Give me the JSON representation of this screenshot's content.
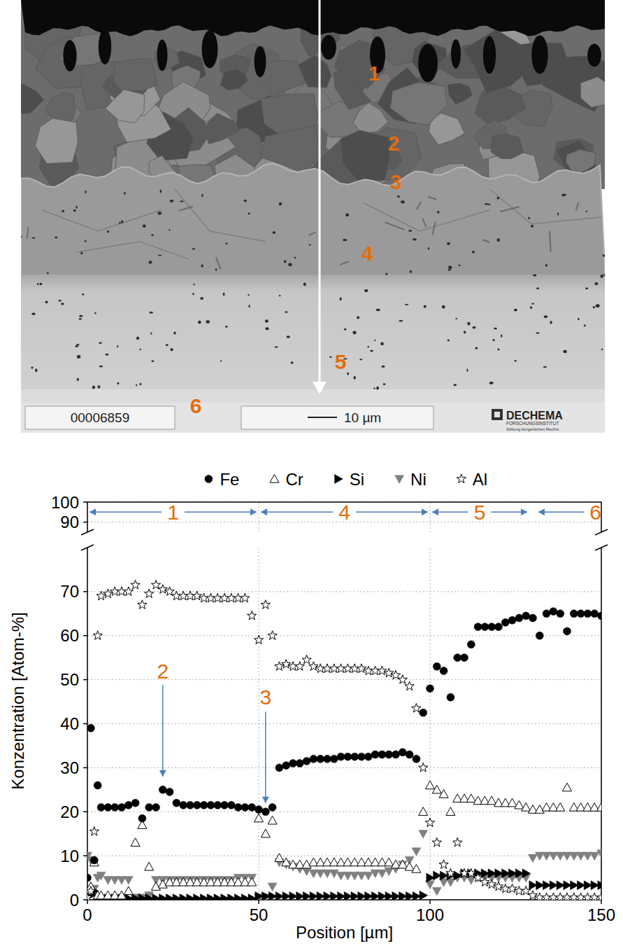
{
  "micrograph": {
    "labels": [
      "1",
      "2",
      "3",
      "4",
      "5",
      "6"
    ],
    "image_id": "00006859",
    "scale_bar": "10 µm",
    "logo": "DECHEMA",
    "logo_subtitle": "FORSCHUNGSINSTITUT",
    "logo_note": "Stiftung bürgerlichen Rechts"
  },
  "chart_data": {
    "type": "scatter",
    "x_label": "Position [µm]",
    "y_label": "Konzentration [Atom-%]",
    "x": [
      0,
      1,
      2,
      3,
      4,
      6,
      8,
      10,
      12,
      14,
      16,
      18,
      20,
      22,
      24,
      26,
      28,
      30,
      32,
      34,
      36,
      38,
      40,
      42,
      44,
      46,
      48,
      50,
      52,
      54,
      56,
      58,
      60,
      62,
      64,
      66,
      68,
      70,
      72,
      74,
      76,
      78,
      80,
      82,
      84,
      86,
      88,
      90,
      92,
      94,
      96,
      98,
      100,
      102,
      104,
      106,
      108,
      110,
      112,
      114,
      116,
      118,
      120,
      122,
      124,
      126,
      128,
      130,
      132,
      134,
      136,
      138,
      140,
      142,
      144,
      146,
      148,
      150
    ],
    "xlim": [
      0,
      150
    ],
    "xticks": [
      0,
      50,
      100,
      150
    ],
    "ylim": [
      0,
      100
    ],
    "yticks": [
      0,
      10,
      20,
      30,
      40,
      50,
      60,
      70,
      90,
      100
    ],
    "grid": true,
    "legend": "top",
    "series": [
      {
        "name": "Fe",
        "color": "#000000",
        "marker": "circle",
        "values": [
          5,
          39,
          9,
          26,
          21,
          21,
          21,
          21,
          21.5,
          22,
          18.5,
          21,
          21,
          25,
          24.5,
          22,
          21.5,
          21.5,
          21.5,
          21.5,
          21.5,
          21.5,
          21.5,
          21.5,
          21,
          21,
          21,
          20.5,
          20,
          21,
          30,
          30.5,
          31,
          31,
          31.5,
          32,
          32,
          32,
          32,
          32.5,
          32.5,
          32.5,
          32.5,
          32.5,
          33,
          33,
          33,
          33,
          33.5,
          33,
          32,
          42.5,
          48,
          53,
          52,
          46,
          55,
          55,
          58,
          62,
          62,
          62,
          62,
          63,
          63.5,
          64,
          64.5,
          64,
          60,
          65,
          65.5,
          65,
          61,
          65,
          65,
          65,
          65,
          64.5
        ]
      },
      {
        "name": "Cr",
        "color": "#000000",
        "marker": "open-triangle-up",
        "values": [
          2,
          3,
          8.5,
          1,
          1,
          1,
          1,
          1,
          2,
          13,
          17,
          7.5,
          3,
          3.5,
          4,
          4,
          4,
          4,
          4,
          4,
          4,
          4,
          4,
          4,
          4,
          4,
          4,
          18.5,
          15,
          18,
          9.5,
          8.5,
          8,
          8,
          8,
          8.5,
          8.5,
          8.5,
          8.5,
          8.5,
          8.5,
          8.5,
          8.5,
          8.5,
          8.5,
          8.5,
          8.5,
          8,
          8,
          7.5,
          7,
          20,
          26,
          25,
          24,
          20,
          23,
          23,
          23,
          22.5,
          22.5,
          22.5,
          22,
          22,
          22,
          21.5,
          21,
          20.5,
          20.5,
          21,
          21,
          21,
          25.5,
          21,
          21,
          21,
          21,
          21
        ]
      },
      {
        "name": "Si",
        "color": "#000000",
        "marker": "triangle-right",
        "values": [
          1,
          1,
          2,
          0.5,
          0.5,
          0.3,
          0.3,
          0.3,
          0.3,
          0.3,
          0.3,
          0.3,
          0.3,
          0.3,
          0.3,
          0.3,
          0.3,
          0.3,
          0.3,
          0.3,
          0.3,
          0.3,
          0.3,
          0.3,
          0.3,
          0.3,
          0.3,
          0.8,
          0.8,
          0.8,
          0.8,
          0.8,
          0.8,
          0.8,
          0.8,
          0.8,
          0.8,
          0.8,
          0.8,
          0.8,
          0.8,
          0.8,
          0.8,
          0.8,
          0.8,
          0.8,
          0.8,
          0.8,
          0.8,
          0.8,
          0.8,
          1,
          5,
          5.5,
          5.5,
          5.5,
          5.5,
          6,
          6,
          6,
          6,
          6,
          6,
          6,
          6,
          6,
          6,
          3.3,
          3.3,
          3.3,
          3.3,
          3.3,
          3.3,
          3.3,
          3.3,
          3.3,
          3.3,
          3.3
        ]
      },
      {
        "name": "Ni",
        "color": "#808080",
        "marker": "triangle-down",
        "values": [
          10,
          9,
          2.5,
          5,
          5.5,
          4.5,
          4.5,
          4.5,
          4.5,
          0.5,
          0.5,
          1,
          4.5,
          4.5,
          4.5,
          4.5,
          4.5,
          4.5,
          4.5,
          4.5,
          4.5,
          4.5,
          4.5,
          4.5,
          5,
          5,
          5,
          0.5,
          0.5,
          3,
          8.5,
          8,
          7.5,
          7,
          6.5,
          6,
          6,
          6,
          6,
          5.5,
          5.5,
          5.5,
          5.5,
          5.5,
          6,
          6,
          6.5,
          7,
          8,
          9,
          11,
          15,
          3.5,
          2,
          4,
          4,
          5,
          5,
          4.5,
          5,
          5,
          5,
          5,
          5,
          5,
          5,
          5,
          9.5,
          10,
          10,
          10,
          10,
          10,
          10,
          10,
          10,
          10,
          10.5
        ]
      },
      {
        "name": "Al",
        "color": "#000000",
        "marker": "open-star",
        "values": [
          0.5,
          2,
          15.5,
          60,
          69,
          69.5,
          70,
          70,
          70,
          71.5,
          67,
          69.5,
          71.5,
          70.5,
          70,
          69,
          69,
          69,
          69,
          68.5,
          68.5,
          68.5,
          68.5,
          68.5,
          68.5,
          68.5,
          64.5,
          59,
          67,
          60,
          53,
          53.5,
          53,
          53,
          54.5,
          53,
          52.5,
          52.5,
          52.5,
          52.5,
          52.5,
          52.5,
          52.5,
          52,
          52,
          52,
          51.5,
          51,
          50,
          48.5,
          43.5,
          30,
          17.5,
          13,
          8,
          6,
          13,
          6,
          6,
          5,
          4,
          3.5,
          3,
          2.5,
          2.5,
          2,
          2,
          1,
          0.5,
          0.5,
          0.5,
          0.5,
          0.5,
          0.5,
          0.5,
          0.5,
          0.5,
          0.5
        ]
      }
    ],
    "annotations": [
      {
        "text": "1",
        "x": [
          0,
          50
        ],
        "y": 95,
        "arrow": "both"
      },
      {
        "text": "4",
        "x": [
          50,
          100
        ],
        "y": 95,
        "arrow": "both"
      },
      {
        "text": "5",
        "x": [
          100,
          129
        ],
        "y": 95,
        "arrow": "both"
      },
      {
        "text": "6",
        "x": [
          131,
          150
        ],
        "y": 95,
        "arrow": "left"
      },
      {
        "text": "2",
        "x": 22,
        "y": 52,
        "arrow_to": 28
      },
      {
        "text": "3",
        "x": 52,
        "y": 46,
        "arrow_to": 22
      }
    ]
  }
}
